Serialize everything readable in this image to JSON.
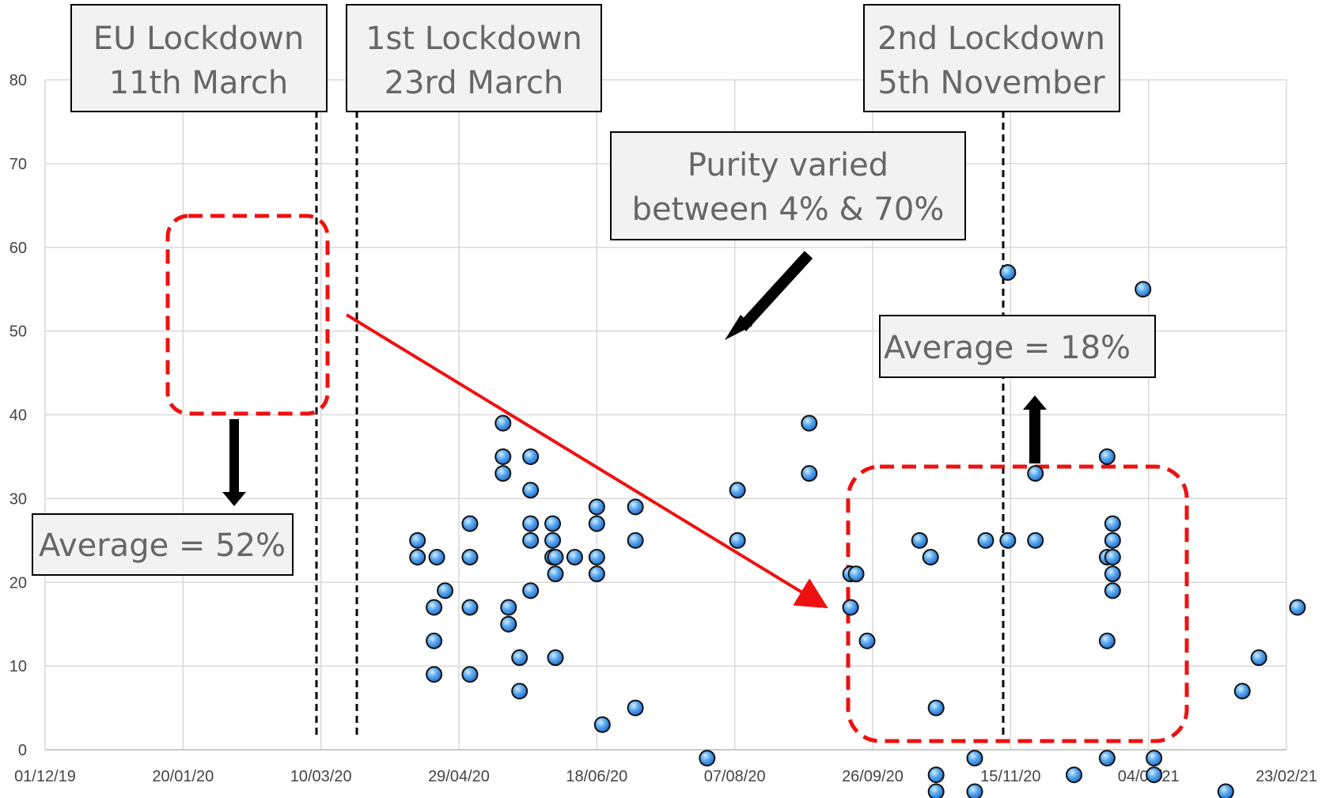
{
  "chart_data": {
    "type": "scatter",
    "title": "",
    "xlabel": "",
    "ylabel": "",
    "ylim": [
      0,
      80
    ],
    "yticks": [
      "0",
      "10",
      "20",
      "30",
      "40",
      "50",
      "60",
      "70",
      "80"
    ],
    "xlim": [
      "2019-12-01",
      "2021-02-23"
    ],
    "xticks": [
      {
        "date": "2019-12-01",
        "label": "01/12/19"
      },
      {
        "date": "2020-01-20",
        "label": "20/01/20"
      },
      {
        "date": "2020-03-10",
        "label": "10/03/20"
      },
      {
        "date": "2020-04-29",
        "label": "29/04/20"
      },
      {
        "date": "2020-06-18",
        "label": "18/06/20"
      },
      {
        "date": "2020-08-07",
        "label": "07/08/20"
      },
      {
        "date": "2020-09-26",
        "label": "26/09/20"
      },
      {
        "date": "2020-11-15",
        "label": "15/11/20"
      },
      {
        "date": "2021-01-04",
        "label": "04/01/21"
      },
      {
        "date": "2021-02-23",
        "label": "23/02/21"
      }
    ],
    "grid": true,
    "marker_color": "#5aaaf0",
    "series": [
      {
        "points": [
          {
            "x": "2020-04-14",
            "y": 25
          },
          {
            "x": "2020-04-14",
            "y": 23
          },
          {
            "x": "2020-04-20",
            "y": 17
          },
          {
            "x": "2020-04-20",
            "y": 13
          },
          {
            "x": "2020-04-20",
            "y": 9
          },
          {
            "x": "2020-04-21",
            "y": 23
          },
          {
            "x": "2020-04-24",
            "y": 19
          },
          {
            "x": "2020-05-03",
            "y": 27
          },
          {
            "x": "2020-05-03",
            "y": 23
          },
          {
            "x": "2020-05-03",
            "y": 17
          },
          {
            "x": "2020-05-03",
            "y": 9
          },
          {
            "x": "2020-05-15",
            "y": 39
          },
          {
            "x": "2020-05-15",
            "y": 35
          },
          {
            "x": "2020-05-15",
            "y": 33
          },
          {
            "x": "2020-05-17",
            "y": 17
          },
          {
            "x": "2020-05-17",
            "y": 15
          },
          {
            "x": "2020-05-21",
            "y": 11
          },
          {
            "x": "2020-05-21",
            "y": 7
          },
          {
            "x": "2020-05-25",
            "y": 35
          },
          {
            "x": "2020-05-25",
            "y": 31
          },
          {
            "x": "2020-05-25",
            "y": 27
          },
          {
            "x": "2020-05-25",
            "y": 25
          },
          {
            "x": "2020-05-25",
            "y": 19
          },
          {
            "x": "2020-06-02",
            "y": 27
          },
          {
            "x": "2020-06-02",
            "y": 25
          },
          {
            "x": "2020-06-02",
            "y": 23
          },
          {
            "x": "2020-06-03",
            "y": 23
          },
          {
            "x": "2020-06-03",
            "y": 21
          },
          {
            "x": "2020-06-03",
            "y": 11
          },
          {
            "x": "2020-06-10",
            "y": 23
          },
          {
            "x": "2020-06-18",
            "y": 29
          },
          {
            "x": "2020-06-18",
            "y": 27
          },
          {
            "x": "2020-06-18",
            "y": 23
          },
          {
            "x": "2020-06-18",
            "y": 21
          },
          {
            "x": "2020-06-20",
            "y": 3
          },
          {
            "x": "2020-07-02",
            "y": 29
          },
          {
            "x": "2020-07-02",
            "y": 25
          },
          {
            "x": "2020-07-02",
            "y": 5
          },
          {
            "x": "2020-07-28",
            "y": -1
          },
          {
            "x": "2020-08-08",
            "y": 31
          },
          {
            "x": "2020-08-08",
            "y": 25
          },
          {
            "x": "2020-09-03",
            "y": 39
          },
          {
            "x": "2020-09-03",
            "y": 33
          },
          {
            "x": "2020-09-18",
            "y": 21
          },
          {
            "x": "2020-09-20",
            "y": 21
          },
          {
            "x": "2020-09-18",
            "y": 17
          },
          {
            "x": "2020-09-24",
            "y": 13
          },
          {
            "x": "2020-10-13",
            "y": 25
          },
          {
            "x": "2020-10-17",
            "y": 23
          },
          {
            "x": "2020-10-19",
            "y": 5
          },
          {
            "x": "2020-10-19",
            "y": -3
          },
          {
            "x": "2020-10-19",
            "y": -5
          },
          {
            "x": "2020-11-02",
            "y": -1
          },
          {
            "x": "2020-11-02",
            "y": -5
          },
          {
            "x": "2020-11-06",
            "y": 25
          },
          {
            "x": "2020-11-14",
            "y": 57
          },
          {
            "x": "2020-11-14",
            "y": 25
          },
          {
            "x": "2020-11-24",
            "y": 25
          },
          {
            "x": "2020-11-24",
            "y": 33
          },
          {
            "x": "2020-12-08",
            "y": -3
          },
          {
            "x": "2020-12-20",
            "y": 35
          },
          {
            "x": "2020-12-20",
            "y": 23
          },
          {
            "x": "2020-12-20",
            "y": 13
          },
          {
            "x": "2020-12-20",
            "y": -1
          },
          {
            "x": "2020-12-22",
            "y": 27
          },
          {
            "x": "2020-12-22",
            "y": 25
          },
          {
            "x": "2020-12-22",
            "y": 23
          },
          {
            "x": "2020-12-22",
            "y": 21
          },
          {
            "x": "2020-12-22",
            "y": 19
          },
          {
            "x": "2021-01-02",
            "y": 55
          },
          {
            "x": "2021-01-06",
            "y": -1
          },
          {
            "x": "2021-01-06",
            "y": -3
          },
          {
            "x": "2021-02-01",
            "y": -5
          },
          {
            "x": "2021-02-07",
            "y": 7
          },
          {
            "x": "2021-02-13",
            "y": 11
          },
          {
            "x": "2021-02-27",
            "y": 17
          }
        ]
      }
    ],
    "annotations": {
      "eu_lockdown": {
        "lines": [
          "EU Lockdown",
          "11th March"
        ],
        "date": "2020-03-11"
      },
      "first_lockdown": {
        "lines": [
          "1st Lockdown",
          "23rd March"
        ],
        "date": "2020-03-24"
      },
      "second_lockdown": {
        "lines": [
          "2nd Lockdown",
          "5th November"
        ],
        "date": "2020-11-15"
      },
      "purity_note": {
        "lines": [
          "Purity varied",
          "between 4% & 70%"
        ]
      },
      "average_before": {
        "text": "Average = 52%"
      },
      "average_after": {
        "text": "Average = 18%"
      }
    },
    "highlight_color": "#ee1111"
  }
}
